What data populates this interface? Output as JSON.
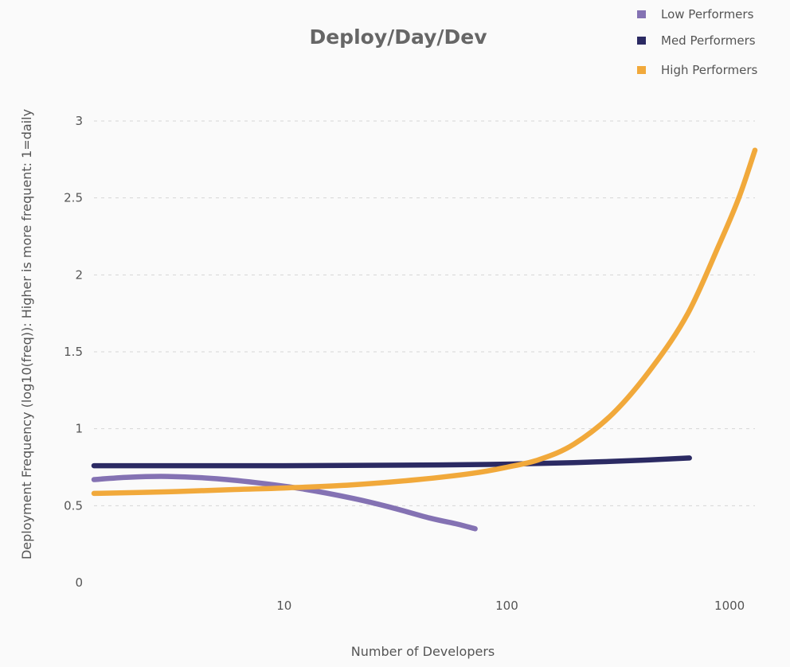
{
  "chart_data": {
    "type": "line",
    "title": "Deploy/Day/Dev",
    "xlabel": "Number of Developers",
    "ylabel": "Deployment Frequency  (log10(freq)): Higher is more frequent: 1=daily",
    "x_scale": "log",
    "xlim": [
      1.4,
      1300
    ],
    "ylim": [
      0,
      3
    ],
    "x_ticks": [
      10,
      100,
      1000
    ],
    "x_tick_labels": [
      "10",
      "100",
      "1000"
    ],
    "y_ticks": [
      0,
      0.5,
      1,
      1.5,
      2,
      2.5,
      3
    ],
    "y_tick_labels": [
      "0",
      "0.5",
      "1",
      "1.5",
      "2",
      "2.5",
      "3"
    ],
    "grid": "horizontal-dashed",
    "legend_position": "top-right",
    "series": [
      {
        "name": "Low Performers",
        "color": "#8472b3",
        "points": [
          [
            1.4,
            0.67
          ],
          [
            2,
            0.685
          ],
          [
            3,
            0.69
          ],
          [
            5,
            0.675
          ],
          [
            8,
            0.645
          ],
          [
            12,
            0.61
          ],
          [
            20,
            0.55
          ],
          [
            30,
            0.49
          ],
          [
            45,
            0.42
          ],
          [
            60,
            0.38
          ],
          [
            72,
            0.35
          ]
        ]
      },
      {
        "name": "Med Performers",
        "color": "#2b2a63",
        "points": [
          [
            1.4,
            0.76
          ],
          [
            10,
            0.76
          ],
          [
            50,
            0.765
          ],
          [
            100,
            0.77
          ],
          [
            200,
            0.78
          ],
          [
            400,
            0.795
          ],
          [
            660,
            0.81
          ]
        ]
      },
      {
        "name": "High Performers",
        "color": "#f1a93b",
        "points": [
          [
            1.4,
            0.58
          ],
          [
            3,
            0.59
          ],
          [
            6,
            0.605
          ],
          [
            10,
            0.615
          ],
          [
            20,
            0.635
          ],
          [
            40,
            0.67
          ],
          [
            70,
            0.71
          ],
          [
            100,
            0.75
          ],
          [
            140,
            0.8
          ],
          [
            200,
            0.9
          ],
          [
            300,
            1.1
          ],
          [
            450,
            1.4
          ],
          [
            650,
            1.75
          ],
          [
            900,
            2.2
          ],
          [
            1100,
            2.5
          ],
          [
            1300,
            2.81
          ]
        ]
      }
    ]
  }
}
